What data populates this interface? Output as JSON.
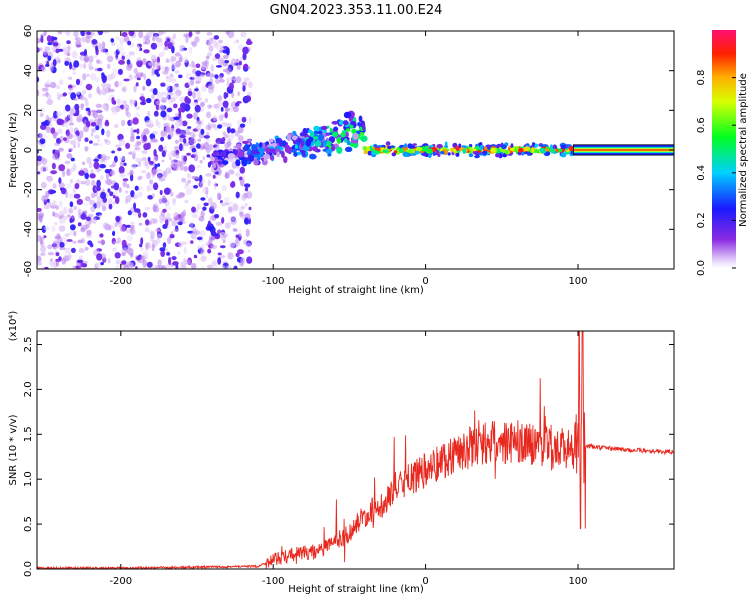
{
  "figure_title": "GN04.2023.353.11.00.E24",
  "colors": {
    "snr_line": "#e8281e",
    "axes": "#000000"
  },
  "chart_data": [
    {
      "type": "heatmap",
      "title": "GN04.2023.353.11.00.E24",
      "xlabel": "Height of straight line (km)",
      "ylabel": "Frequency (Hz)",
      "xlim": [
        -255,
        163
      ],
      "ylim": [
        -60,
        60
      ],
      "xticks": [
        -200,
        -100,
        0,
        100
      ],
      "yticks": [
        -60,
        -40,
        -20,
        0,
        20,
        40,
        60
      ],
      "xtick_labels": [
        "-200",
        "-100",
        "0",
        "100"
      ],
      "ytick_labels": [
        "-60",
        "-40",
        "-20",
        "0",
        "20",
        "40",
        "60"
      ],
      "colorbar": {
        "label": "Normalized spectral amplitude",
        "range": [
          0,
          1
        ],
        "ticks": [
          0.0,
          0.2,
          0.4,
          0.6,
          0.8
        ],
        "tick_labels": [
          "0.0",
          "0.2",
          "0.4",
          "0.6",
          "0.8"
        ],
        "colormap": "rainbow (white-violet-blue-cyan-green-yellow-red-magenta)"
      },
      "regions": [
        {
          "x_range": [
            -255,
            -115
          ],
          "freq_range": [
            -60,
            60
          ],
          "amplitude": 0.1,
          "description": "noise"
        },
        {
          "x_range": [
            -140,
            -40
          ],
          "freq_center": [
            -5,
            10
          ],
          "amplitude": 0.35
        },
        {
          "x_range": [
            -40,
            97
          ],
          "freq_center": [
            0,
            0
          ],
          "amplitude": 0.8
        },
        {
          "x_range": [
            97,
            163
          ],
          "freq_center": [
            0,
            0
          ],
          "amplitude": 0.9
        }
      ]
    },
    {
      "type": "line",
      "xlabel": "Height of straight line (km)",
      "ylabel": "SNR (10 * v/v)",
      "y_multiplier": "(x10⁴)",
      "xlim": [
        -255,
        163
      ],
      "ylim": [
        0,
        2.65
      ],
      "xticks": [
        -200,
        -100,
        0,
        100
      ],
      "yticks": [
        0.0,
        0.5,
        1.0,
        1.5,
        2.0,
        2.5
      ],
      "xtick_labels": [
        "-200",
        "-100",
        "0",
        "100"
      ],
      "ytick_labels": [
        "0.0",
        "0.5",
        "1.0",
        "1.5",
        "2.0",
        "2.5"
      ],
      "series": [
        {
          "x": [
            -255,
            -200,
            -150,
            -110,
            -100,
            -90,
            -80,
            -70,
            -60,
            -50,
            -40,
            -30,
            -20,
            -10,
            0,
            10,
            20,
            30,
            40,
            50,
            60,
            70,
            80,
            90,
            100,
            104,
            110,
            130,
            163
          ],
          "y": [
            0.01,
            0.01,
            0.02,
            0.03,
            0.1,
            0.15,
            0.18,
            0.2,
            0.3,
            0.4,
            0.6,
            0.7,
            0.9,
            1.0,
            1.1,
            1.2,
            1.3,
            1.35,
            1.4,
            1.42,
            1.4,
            1.4,
            1.38,
            1.35,
            1.3,
            1.37,
            1.36,
            1.33,
            1.3
          ]
        }
      ]
    }
  ]
}
